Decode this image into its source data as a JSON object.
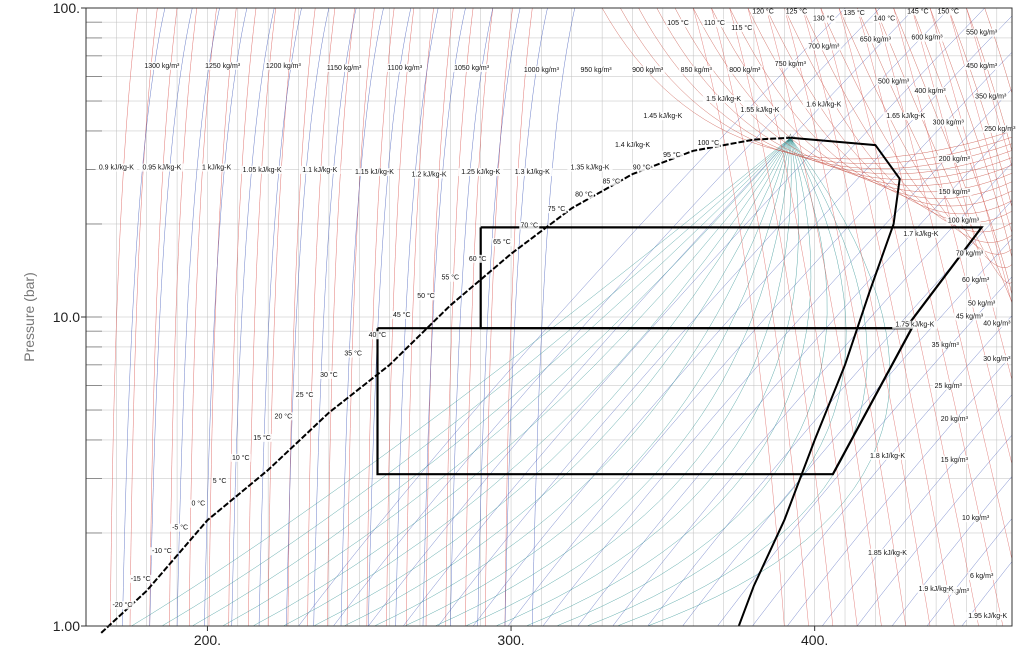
{
  "chart_data": {
    "type": "line",
    "title": "",
    "xlabel": "",
    "ylabel": "Pressure (bar)",
    "xlim": [
      160,
      465
    ],
    "ylim": [
      1,
      100
    ],
    "yscale": "log",
    "grid": true,
    "x_ticks": [
      "200.",
      "300.",
      "400."
    ],
    "x_tick_values": [
      200,
      300,
      400
    ],
    "y_ticks": [
      "1.00",
      "10.0",
      "100."
    ],
    "y_tick_values": [
      1,
      10,
      100
    ],
    "colors": {
      "isotherm": "#d9534f",
      "isochor": "#c0392b",
      "isentrope": "#3a53b5",
      "quality": "#2a8f8f",
      "dome": "#000000",
      "cycle": "#000000",
      "grid": "#bfbfbf"
    },
    "saturation_dome": {
      "liquid": [
        [
          165,
          0.95
        ],
        [
          180,
          1.3
        ],
        [
          200,
          2.2
        ],
        [
          220,
          3.2
        ],
        [
          240,
          4.9
        ],
        [
          260,
          7.0
        ],
        [
          280,
          10.9
        ],
        [
          300,
          16.0
        ],
        [
          320,
          22.5
        ],
        [
          340,
          29.0
        ],
        [
          360,
          34.5
        ],
        [
          380,
          37.5
        ],
        [
          392,
          38.0
        ]
      ],
      "vapor": [
        [
          392,
          38.0
        ],
        [
          420,
          36.0
        ],
        [
          428,
          28.0
        ],
        [
          426,
          20.0
        ],
        [
          418,
          12.0
        ],
        [
          410,
          7.0
        ],
        [
          400,
          4.0
        ],
        [
          390,
          2.2
        ],
        [
          380,
          1.35
        ],
        [
          375,
          1.0
        ]
      ],
      "critical_point": [
        392,
        38.0
      ]
    },
    "cycles": [
      {
        "points": [
          [
            290,
            19.5
          ],
          [
            455,
            19.5
          ],
          [
            430,
            9.2
          ],
          [
            290,
            9.2
          ],
          [
            290,
            19.5
          ]
        ]
      },
      {
        "points": [
          [
            256,
            9.2
          ],
          [
            432,
            9.2
          ],
          [
            406,
            3.1
          ],
          [
            256,
            3.1
          ],
          [
            256,
            9.2
          ]
        ]
      }
    ],
    "temperature_labels": [
      {
        "text": "-20 °C",
        "x": 172,
        "y": 1.15
      },
      {
        "text": "-15 °C",
        "x": 178,
        "y": 1.4
      },
      {
        "text": "-10 °C",
        "x": 185,
        "y": 1.72
      },
      {
        "text": "-5 °C",
        "x": 191,
        "y": 2.05
      },
      {
        "text": "0 °C",
        "x": 197,
        "y": 2.45
      },
      {
        "text": "5 °C",
        "x": 204,
        "y": 2.9
      },
      {
        "text": "10 °C",
        "x": 211,
        "y": 3.45
      },
      {
        "text": "15 °C",
        "x": 218,
        "y": 4.0
      },
      {
        "text": "20 °C",
        "x": 225,
        "y": 4.7
      },
      {
        "text": "25 °C",
        "x": 232,
        "y": 5.5
      },
      {
        "text": "30 °C",
        "x": 240,
        "y": 6.4
      },
      {
        "text": "35 °C",
        "x": 248,
        "y": 7.5
      },
      {
        "text": "40 °C",
        "x": 256,
        "y": 8.6
      },
      {
        "text": "45 °C",
        "x": 264,
        "y": 10.0
      },
      {
        "text": "50 °C",
        "x": 272,
        "y": 11.5
      },
      {
        "text": "55 °C",
        "x": 280,
        "y": 13.2
      },
      {
        "text": "60 °C",
        "x": 289,
        "y": 15.2
      },
      {
        "text": "65 °C",
        "x": 297,
        "y": 17.2
      },
      {
        "text": "70 °C",
        "x": 306,
        "y": 19.5
      },
      {
        "text": "75 °C",
        "x": 315,
        "y": 22.0
      },
      {
        "text": "80 °C",
        "x": 324,
        "y": 24.5
      },
      {
        "text": "85 °C",
        "x": 333,
        "y": 27.0
      },
      {
        "text": "90 °C",
        "x": 343,
        "y": 30.0
      },
      {
        "text": "95 °C",
        "x": 353,
        "y": 33.0
      },
      {
        "text": "100 °C",
        "x": 365,
        "y": 36.0
      },
      {
        "text": "105 °C",
        "x": 355,
        "y": 88.0
      },
      {
        "text": "110 °C",
        "x": 367,
        "y": 88.0
      },
      {
        "text": "115 °C",
        "x": 376,
        "y": 85.0
      },
      {
        "text": "120 °C",
        "x": 383,
        "y": 96.0
      },
      {
        "text": "125 °C",
        "x": 394,
        "y": 96.0
      },
      {
        "text": "130 °C",
        "x": 403,
        "y": 91.0
      },
      {
        "text": "135 °C",
        "x": 413,
        "y": 95.0
      },
      {
        "text": "140 °C",
        "x": 423,
        "y": 91.0
      },
      {
        "text": "145 °C",
        "x": 434,
        "y": 96.0
      },
      {
        "text": "150 °C",
        "x": 444,
        "y": 96.0
      }
    ],
    "density_labels": [
      {
        "text": "1300 kg/m³",
        "x": 185,
        "y": 64.0
      },
      {
        "text": "1250 kg/m³",
        "x": 205,
        "y": 64.0
      },
      {
        "text": "1200 kg/m³",
        "x": 225,
        "y": 64.0
      },
      {
        "text": "1150 kg/m³",
        "x": 245,
        "y": 63.0
      },
      {
        "text": "1100 kg/m³",
        "x": 265,
        "y": 63.0
      },
      {
        "text": "1050 kg/m³",
        "x": 287,
        "y": 63.0
      },
      {
        "text": "1000 kg/m³",
        "x": 310,
        "y": 62.0
      },
      {
        "text": "950 kg/m³",
        "x": 328,
        "y": 62.0
      },
      {
        "text": "900 kg/m³",
        "x": 345,
        "y": 62.0
      },
      {
        "text": "850 kg/m³",
        "x": 361,
        "y": 62.0
      },
      {
        "text": "800 kg/m³",
        "x": 377,
        "y": 62.0
      },
      {
        "text": "750 kg/m³",
        "x": 392,
        "y": 65.0
      },
      {
        "text": "700 kg/m³",
        "x": 403,
        "y": 74.0
      },
      {
        "text": "650 kg/m³",
        "x": 420,
        "y": 78.0
      },
      {
        "text": "600 kg/m³",
        "x": 437,
        "y": 79.0
      },
      {
        "text": "550 kg/m³",
        "x": 455,
        "y": 82.0
      },
      {
        "text": "500 kg/m³",
        "x": 426,
        "y": 57.0
      },
      {
        "text": "450 kg/m³",
        "x": 455,
        "y": 64.0
      },
      {
        "text": "400 kg/m³",
        "x": 438,
        "y": 53.0
      },
      {
        "text": "350 kg/m³",
        "x": 458,
        "y": 51.0
      },
      {
        "text": "300 kg/m³",
        "x": 444,
        "y": 42.0
      },
      {
        "text": "250 kg/m³",
        "x": 461,
        "y": 40.0
      },
      {
        "text": "200 kg/m³",
        "x": 446,
        "y": 32.0
      },
      {
        "text": "150 kg/m³",
        "x": 446,
        "y": 25.0
      },
      {
        "text": "100 kg/m³",
        "x": 449,
        "y": 20.2
      },
      {
        "text": "70 kg/m³",
        "x": 451,
        "y": 15.8
      },
      {
        "text": "60 kg/m³",
        "x": 453,
        "y": 13.0
      },
      {
        "text": "50 kg/m³",
        "x": 455,
        "y": 10.9
      },
      {
        "text": "45 kg/m³",
        "x": 451,
        "y": 9.9
      },
      {
        "text": "40 kg/m³",
        "x": 460,
        "y": 9.4
      },
      {
        "text": "35 kg/m³",
        "x": 443,
        "y": 8.0
      },
      {
        "text": "30 kg/m³",
        "x": 460,
        "y": 7.2
      },
      {
        "text": "25 kg/m³",
        "x": 444,
        "y": 5.9
      },
      {
        "text": "20 kg/m³",
        "x": 446,
        "y": 4.6
      },
      {
        "text": "15 kg/m³",
        "x": 446,
        "y": 3.4
      },
      {
        "text": "10 kg/m³",
        "x": 453,
        "y": 2.2
      },
      {
        "text": "6 kg/m³",
        "x": 455,
        "y": 1.43
      },
      {
        "text": "5 kg/m³",
        "x": 447,
        "y": 1.28
      }
    ],
    "entropy_labels": [
      {
        "text": "0.9 kJ/kg-K",
        "x": 170,
        "y": 30.0
      },
      {
        "text": "0.95 kJ/kg-K",
        "x": 185,
        "y": 30.0
      },
      {
        "text": "1 kJ/kg-K",
        "x": 203,
        "y": 30.0
      },
      {
        "text": "1.05 kJ/kg-K",
        "x": 218,
        "y": 29.5
      },
      {
        "text": "1.1 kJ/kg-K",
        "x": 237,
        "y": 29.5
      },
      {
        "text": "1.15 kJ/kg-K",
        "x": 255,
        "y": 29.0
      },
      {
        "text": "1.2 kJ/kg-K",
        "x": 273,
        "y": 28.5
      },
      {
        "text": "1.25 kJ/kg-K",
        "x": 290,
        "y": 29.0
      },
      {
        "text": "1.3 kJ/kg-K",
        "x": 307,
        "y": 29.0
      },
      {
        "text": "1.35 kJ/kg-K",
        "x": 326,
        "y": 30.0
      },
      {
        "text": "1.4 kJ/kg-K",
        "x": 340,
        "y": 35.5
      },
      {
        "text": "1.45 kJ/kg-K",
        "x": 350,
        "y": 44.0
      },
      {
        "text": "1.5 kJ/kg-K",
        "x": 370,
        "y": 50.0
      },
      {
        "text": "1.55 kJ/kg-K",
        "x": 382,
        "y": 46.0
      },
      {
        "text": "1.6 kJ/kg-K",
        "x": 403,
        "y": 48.0
      },
      {
        "text": "1.65 kJ/kg-K",
        "x": 430,
        "y": 44.0
      },
      {
        "text": "1.7 kJ/kg-K",
        "x": 435,
        "y": 18.3
      },
      {
        "text": "1.75 kJ/kg-K",
        "x": 433,
        "y": 9.3
      },
      {
        "text": "1.8 kJ/kg-K",
        "x": 424,
        "y": 3.5
      },
      {
        "text": "1.85 kJ/kg-K",
        "x": 424,
        "y": 1.7
      },
      {
        "text": "1.9 kJ/kg-K",
        "x": 440,
        "y": 1.3
      },
      {
        "text": "1.95 kJ/kg-K",
        "x": 457,
        "y": 1.06
      }
    ]
  }
}
